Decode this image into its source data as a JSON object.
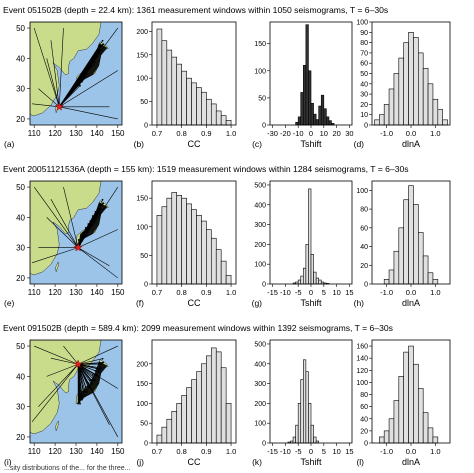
{
  "colors": {
    "land": "#c8dc8c",
    "sea": "#9cc4e8",
    "bar_light": "#e0e0e0",
    "bar_dark": "#333333",
    "epicenter": "#e02020",
    "paths": "#000000"
  },
  "footer_text": "...sity distributions of the... for the three...",
  "rows": [
    {
      "caption": "Event 051502B (depth = 22.4 km): 1361 measurement windows within 1050 seismograms, T = 6–30s",
      "map": {
        "label": "(a)",
        "icon": "map-japan-raypaths",
        "xticks": [
          "110",
          "120",
          "130",
          "140",
          "150"
        ],
        "yticks": [
          "20",
          "30",
          "40",
          "50"
        ],
        "xlim": [
          108,
          152
        ],
        "ylim": [
          18,
          52
        ],
        "event": {
          "lon": 122,
          "lat": 24
        }
      },
      "hists": [
        {
          "label": "(b)",
          "xlabel": "CC",
          "type": "bar",
          "fill": "light",
          "xticks": [
            "0.7",
            "0.8",
            "0.9",
            "1.0"
          ],
          "xtick_vals": [
            0.7,
            0.8,
            0.9,
            1.0
          ],
          "yticks": [
            "0",
            "50",
            "100",
            "150",
            "200"
          ],
          "ytick_vals": [
            0,
            50,
            100,
            150,
            200
          ],
          "xlim": [
            0.68,
            1.02
          ],
          "ylim": [
            0,
            220
          ],
          "bins": [
            0.7,
            0.72,
            0.74,
            0.76,
            0.78,
            0.8,
            0.82,
            0.84,
            0.86,
            0.88,
            0.9,
            0.92,
            0.94,
            0.96,
            0.98
          ],
          "width": 0.02,
          "values": [
            205,
            180,
            160,
            145,
            130,
            115,
            100,
            90,
            80,
            70,
            55,
            45,
            30,
            20,
            10
          ]
        },
        {
          "label": "(c)",
          "xlabel": "Tshift",
          "type": "bar",
          "fill": "dark",
          "xticks": [
            "-30",
            "-20",
            "-10",
            "0",
            "10",
            "20",
            "30"
          ],
          "xtick_vals": [
            -30,
            -20,
            -10,
            0,
            10,
            20,
            30
          ],
          "yticks": [
            "0",
            "50",
            "100",
            "150"
          ],
          "ytick_vals": [
            0,
            50,
            100,
            150
          ],
          "xlim": [
            -32,
            32
          ],
          "ylim": [
            0,
            190
          ],
          "bins": [
            -12,
            -10,
            -8,
            -6,
            -4,
            -2,
            0,
            2,
            4,
            6,
            8,
            10,
            12,
            14,
            16
          ],
          "width": 2,
          "values": [
            5,
            15,
            60,
            110,
            185,
            100,
            40,
            20,
            10,
            35,
            55,
            30,
            15,
            8,
            3
          ]
        },
        {
          "label": "(d)",
          "xlabel": "dlnA",
          "type": "bar",
          "fill": "light",
          "xticks": [
            "-1.0",
            "0.0",
            "1.0"
          ],
          "xtick_vals": [
            -1.0,
            0.0,
            1.0
          ],
          "yticks": [
            "0",
            "10",
            "20",
            "30",
            "40",
            "50",
            "60",
            "70",
            "80",
            "90",
            "100"
          ],
          "ytick_vals": [
            0,
            10,
            20,
            30,
            40,
            50,
            60,
            70,
            80,
            90,
            100
          ],
          "xlim": [
            -1.6,
            1.6
          ],
          "ylim": [
            0,
            100
          ],
          "bins": [
            -1.5,
            -1.3,
            -1.1,
            -0.9,
            -0.7,
            -0.5,
            -0.3,
            -0.1,
            0.1,
            0.3,
            0.5,
            0.7,
            0.9,
            1.1,
            1.3
          ],
          "width": 0.2,
          "values": [
            5,
            10,
            20,
            35,
            50,
            65,
            80,
            90,
            85,
            70,
            55,
            40,
            25,
            15,
            5
          ]
        }
      ]
    },
    {
      "caption": "Event 20051121536A (depth = 155 km): 1519 measurement windows within 1284 seismograms, T = 6–30s",
      "map": {
        "label": "(e)",
        "icon": "map-japan-raypaths",
        "xticks": [
          "110",
          "120",
          "130",
          "140",
          "150"
        ],
        "yticks": [
          "20",
          "30",
          "40",
          "50"
        ],
        "xlim": [
          108,
          152
        ],
        "ylim": [
          18,
          52
        ],
        "event": {
          "lon": 131,
          "lat": 30
        }
      },
      "hists": [
        {
          "label": "(f)",
          "xlabel": "CC",
          "type": "bar",
          "fill": "light",
          "xticks": [
            "0.7",
            "0.8",
            "0.9",
            "1.0"
          ],
          "xtick_vals": [
            0.7,
            0.8,
            0.9,
            1.0
          ],
          "yticks": [
            "0",
            "50",
            "100",
            "150"
          ],
          "ytick_vals": [
            0,
            50,
            100,
            150
          ],
          "xlim": [
            0.68,
            1.02
          ],
          "ylim": [
            0,
            180
          ],
          "bins": [
            0.7,
            0.72,
            0.74,
            0.76,
            0.78,
            0.8,
            0.82,
            0.84,
            0.86,
            0.88,
            0.9,
            0.92,
            0.94,
            0.96,
            0.98
          ],
          "width": 0.02,
          "values": [
            120,
            135,
            150,
            160,
            155,
            150,
            140,
            130,
            120,
            110,
            95,
            80,
            60,
            40,
            15
          ]
        },
        {
          "label": "(g)",
          "xlabel": "Tshift",
          "type": "bar",
          "fill": "light",
          "xticks": [
            "-15",
            "-10",
            "-5",
            "0",
            "5",
            "10",
            "15"
          ],
          "xtick_vals": [
            -15,
            -10,
            -5,
            0,
            5,
            10,
            15
          ],
          "yticks": [
            "0",
            "100",
            "200",
            "300",
            "400",
            "500"
          ],
          "ytick_vals": [
            0,
            100,
            200,
            300,
            400,
            500
          ],
          "xlim": [
            -16,
            16
          ],
          "ylim": [
            0,
            520
          ],
          "bins": [
            -7,
            -6,
            -5,
            -4,
            -3,
            -2,
            -1,
            0,
            1,
            2,
            3,
            4,
            5,
            6
          ],
          "width": 1,
          "values": [
            5,
            10,
            20,
            40,
            80,
            200,
            480,
            150,
            60,
            30,
            20,
            10,
            5,
            3
          ]
        },
        {
          "label": "(h)",
          "xlabel": "dlnA",
          "type": "bar",
          "fill": "light",
          "xticks": [
            "-1.0",
            "0.0",
            "1.0"
          ],
          "xtick_vals": [
            -1.0,
            0.0,
            1.0
          ],
          "yticks": [
            "0",
            "20",
            "40",
            "60",
            "80",
            "100"
          ],
          "ytick_vals": [
            0,
            20,
            40,
            60,
            80,
            100
          ],
          "xlim": [
            -1.6,
            1.6
          ],
          "ylim": [
            0,
            110
          ],
          "bins": [
            -1.1,
            -0.9,
            -0.7,
            -0.5,
            -0.3,
            -0.1,
            0.1,
            0.3,
            0.5,
            0.7,
            0.9
          ],
          "width": 0.2,
          "values": [
            5,
            15,
            35,
            60,
            90,
            105,
            85,
            55,
            30,
            12,
            5
          ]
        }
      ]
    },
    {
      "caption": "Event 091502B (depth = 589.4 km): 2099 measurement windows within 1392 seismograms, T = 6–30s",
      "map": {
        "label": "(i)",
        "icon": "map-japan-raypaths",
        "xticks": [
          "110",
          "120",
          "130",
          "140",
          "150"
        ],
        "yticks": [
          "20",
          "30",
          "40",
          "50"
        ],
        "xlim": [
          108,
          152
        ],
        "ylim": [
          18,
          52
        ],
        "event": {
          "lon": 131,
          "lat": 44
        }
      },
      "hists": [
        {
          "label": "(j)",
          "xlabel": "CC",
          "type": "bar",
          "fill": "light",
          "xticks": [
            "0.7",
            "0.8",
            "0.9",
            "1.0"
          ],
          "xtick_vals": [
            0.7,
            0.8,
            0.9,
            1.0
          ],
          "yticks": [
            "0",
            "50",
            "100",
            "150",
            "200"
          ],
          "ytick_vals": [
            0,
            50,
            100,
            150,
            200
          ],
          "xlim": [
            0.68,
            1.02
          ],
          "ylim": [
            0,
            260
          ],
          "bins": [
            0.7,
            0.72,
            0.74,
            0.76,
            0.78,
            0.8,
            0.82,
            0.84,
            0.86,
            0.88,
            0.9,
            0.92,
            0.94,
            0.96,
            0.98
          ],
          "width": 0.02,
          "values": [
            20,
            40,
            60,
            80,
            100,
            120,
            140,
            160,
            180,
            200,
            220,
            240,
            230,
            190,
            100
          ]
        },
        {
          "label": "(k)",
          "xlabel": "Tshift",
          "type": "bar",
          "fill": "light",
          "xticks": [
            "-15",
            "-10",
            "-5",
            "0",
            "5",
            "10",
            "15"
          ],
          "xtick_vals": [
            -15,
            -10,
            -5,
            0,
            5,
            10,
            15
          ],
          "yticks": [
            "0",
            "100",
            "200",
            "300",
            "400",
            "500"
          ],
          "ytick_vals": [
            0,
            100,
            200,
            300,
            400,
            500
          ],
          "xlim": [
            -16,
            16
          ],
          "ylim": [
            0,
            520
          ],
          "bins": [
            -9,
            -8,
            -7,
            -6,
            -5,
            -4,
            -3,
            -2,
            -1,
            0,
            1,
            2
          ],
          "width": 1,
          "values": [
            5,
            10,
            30,
            90,
            200,
            320,
            420,
            360,
            200,
            90,
            30,
            10
          ]
        },
        {
          "label": "(l)",
          "xlabel": "dlnA",
          "type": "bar",
          "fill": "light",
          "xticks": [
            "-1.0",
            "0.0",
            "1.0"
          ],
          "xtick_vals": [
            -1.0,
            0.0,
            1.0
          ],
          "yticks": [
            "0",
            "20",
            "40",
            "60",
            "80",
            "100",
            "120",
            "140",
            "160"
          ],
          "ytick_vals": [
            0,
            20,
            40,
            60,
            80,
            100,
            120,
            140,
            160
          ],
          "xlim": [
            -1.6,
            1.6
          ],
          "ylim": [
            0,
            170
          ],
          "bins": [
            -1.3,
            -1.1,
            -0.9,
            -0.7,
            -0.5,
            -0.3,
            -0.1,
            0.1,
            0.3,
            0.5,
            0.7,
            0.9
          ],
          "width": 0.2,
          "values": [
            10,
            20,
            40,
            70,
            110,
            150,
            160,
            130,
            90,
            50,
            25,
            10
          ]
        }
      ]
    }
  ],
  "chart_data": [
    {
      "type": "bar",
      "title": "",
      "xlabel": "CC",
      "categories": [
        "0.70",
        "0.72",
        "0.74",
        "0.76",
        "0.78",
        "0.80",
        "0.82",
        "0.84",
        "0.86",
        "0.88",
        "0.90",
        "0.92",
        "0.94",
        "0.96",
        "0.98"
      ],
      "values": [
        205,
        180,
        160,
        145,
        130,
        115,
        100,
        90,
        80,
        70,
        55,
        45,
        30,
        20,
        10
      ]
    },
    {
      "type": "bar",
      "title": "",
      "xlabel": "Tshift",
      "categories": [
        "-12",
        "-10",
        "-8",
        "-6",
        "-4",
        "-2",
        "0",
        "2",
        "4",
        "6",
        "8",
        "10",
        "12",
        "14",
        "16"
      ],
      "values": [
        5,
        15,
        60,
        110,
        185,
        100,
        40,
        20,
        10,
        35,
        55,
        30,
        15,
        8,
        3
      ]
    },
    {
      "type": "bar",
      "title": "",
      "xlabel": "dlnA",
      "categories": [
        "-1.5",
        "-1.3",
        "-1.1",
        "-0.9",
        "-0.7",
        "-0.5",
        "-0.3",
        "-0.1",
        "0.1",
        "0.3",
        "0.5",
        "0.7",
        "0.9",
        "1.1",
        "1.3"
      ],
      "values": [
        5,
        10,
        20,
        35,
        50,
        65,
        80,
        90,
        85,
        70,
        55,
        40,
        25,
        15,
        5
      ]
    },
    {
      "type": "bar",
      "title": "",
      "xlabel": "CC",
      "categories": [
        "0.70",
        "0.72",
        "0.74",
        "0.76",
        "0.78",
        "0.80",
        "0.82",
        "0.84",
        "0.86",
        "0.88",
        "0.90",
        "0.92",
        "0.94",
        "0.96",
        "0.98"
      ],
      "values": [
        120,
        135,
        150,
        160,
        155,
        150,
        140,
        130,
        120,
        110,
        95,
        80,
        60,
        40,
        15
      ]
    },
    {
      "type": "bar",
      "title": "",
      "xlabel": "Tshift",
      "categories": [
        "-7",
        "-6",
        "-5",
        "-4",
        "-3",
        "-2",
        "-1",
        "0",
        "1",
        "2",
        "3",
        "4",
        "5",
        "6"
      ],
      "values": [
        5,
        10,
        20,
        40,
        80,
        200,
        480,
        150,
        60,
        30,
        20,
        10,
        5,
        3
      ]
    },
    {
      "type": "bar",
      "title": "",
      "xlabel": "dlnA",
      "categories": [
        "-1.1",
        "-0.9",
        "-0.7",
        "-0.5",
        "-0.3",
        "-0.1",
        "0.1",
        "0.3",
        "0.5",
        "0.7",
        "0.9"
      ],
      "values": [
        5,
        15,
        35,
        60,
        90,
        105,
        85,
        55,
        30,
        12,
        5
      ]
    },
    {
      "type": "bar",
      "title": "",
      "xlabel": "CC",
      "categories": [
        "0.70",
        "0.72",
        "0.74",
        "0.76",
        "0.78",
        "0.80",
        "0.82",
        "0.84",
        "0.86",
        "0.88",
        "0.90",
        "0.92",
        "0.94",
        "0.96",
        "0.98"
      ],
      "values": [
        20,
        40,
        60,
        80,
        100,
        120,
        140,
        160,
        180,
        200,
        220,
        240,
        230,
        190,
        100
      ]
    },
    {
      "type": "bar",
      "title": "",
      "xlabel": "Tshift",
      "categories": [
        "-9",
        "-8",
        "-7",
        "-6",
        "-5",
        "-4",
        "-3",
        "-2",
        "-1",
        "0",
        "1",
        "2"
      ],
      "values": [
        5,
        10,
        30,
        90,
        200,
        320,
        420,
        360,
        200,
        90,
        30,
        10
      ]
    },
    {
      "type": "bar",
      "title": "",
      "xlabel": "dlnA",
      "categories": [
        "-1.3",
        "-1.1",
        "-0.9",
        "-0.7",
        "-0.5",
        "-0.3",
        "-0.1",
        "0.1",
        "0.3",
        "0.5",
        "0.7",
        "0.9"
      ],
      "values": [
        10,
        20,
        40,
        70,
        110,
        150,
        160,
        130,
        90,
        50,
        25,
        10
      ]
    }
  ]
}
